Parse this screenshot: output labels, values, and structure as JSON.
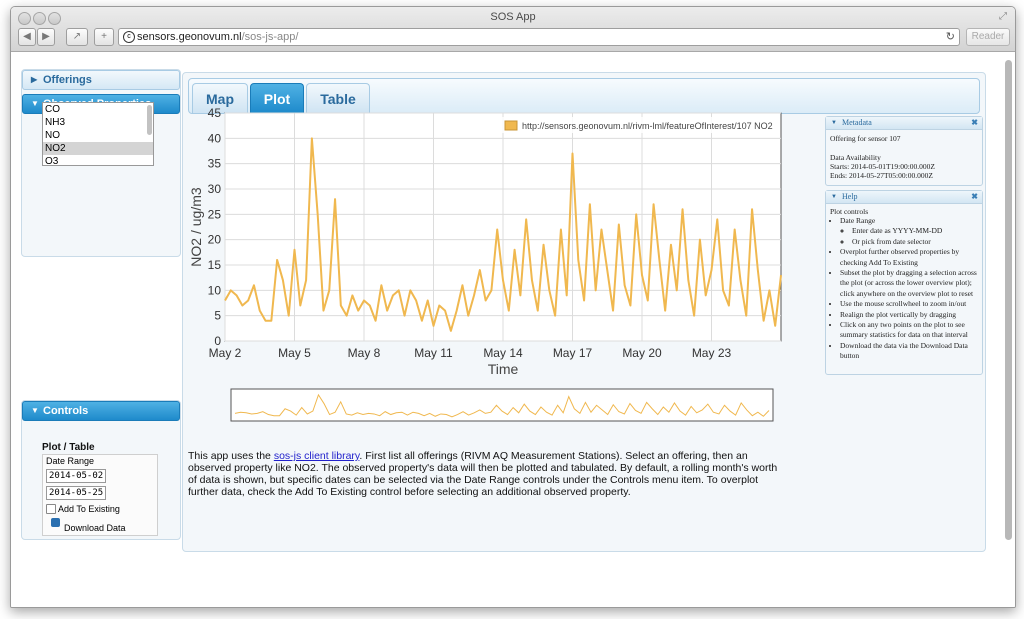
{
  "window": {
    "title": "SOS App",
    "url_host": "sensors.geonovum.nl",
    "url_path": "/sos-js-app/",
    "reader_label": "Reader"
  },
  "sidebar": {
    "offerings_label": "Offerings",
    "observed_properties_label": "Observed Properties",
    "properties": [
      "CO",
      "NH3",
      "NO",
      "NO2",
      "O3"
    ],
    "selected_property": "NO2",
    "controls_label": "Controls",
    "plot_table_label": "Plot / Table",
    "date_range_label": "Date Range",
    "start_date": "2014-05-02",
    "end_date": "2014-05-25",
    "add_to_existing_label": "Add To Existing",
    "download_label": "Download Data"
  },
  "tabs": [
    {
      "label": "Map",
      "active": false
    },
    {
      "label": "Plot",
      "active": true
    },
    {
      "label": "Table",
      "active": false
    }
  ],
  "chart_data": {
    "type": "line",
    "xlabel": "Time",
    "ylabel": "NO2 / ug/m3",
    "ylim": [
      0,
      45
    ],
    "yticks": [
      0,
      5,
      10,
      15,
      20,
      25,
      30,
      35,
      40,
      45
    ],
    "xticks": [
      "May 2",
      "May 5",
      "May 8",
      "May 11",
      "May 14",
      "May 17",
      "May 20",
      "May 23"
    ],
    "grid": true,
    "legend_position": "top-right",
    "series": [
      {
        "name": "http://sensors.geonovum.nl/rivm-lml/featureOfInterest/107 NO2",
        "color": "#f0b84f",
        "x": [
          2.0,
          2.25,
          2.5,
          2.75,
          3.0,
          3.25,
          3.5,
          3.75,
          4.0,
          4.25,
          4.5,
          4.75,
          5.0,
          5.25,
          5.5,
          5.75,
          6.0,
          6.25,
          6.5,
          6.75,
          7.0,
          7.25,
          7.5,
          7.75,
          8.0,
          8.25,
          8.5,
          8.75,
          9.0,
          9.25,
          9.5,
          9.75,
          10.0,
          10.25,
          10.5,
          10.75,
          11.0,
          11.25,
          11.5,
          11.75,
          12.0,
          12.25,
          12.5,
          12.75,
          13.0,
          13.25,
          13.5,
          13.75,
          14.0,
          14.25,
          14.5,
          14.75,
          15.0,
          15.25,
          15.5,
          15.75,
          16.0,
          16.25,
          16.5,
          16.75,
          17.0,
          17.25,
          17.5,
          17.75,
          18.0,
          18.25,
          18.5,
          18.75,
          19.0,
          19.25,
          19.5,
          19.75,
          20.0,
          20.25,
          20.5,
          20.75,
          21.0,
          21.25,
          21.5,
          21.75,
          22.0,
          22.25,
          22.5,
          22.75,
          23.0,
          23.25,
          23.5,
          23.75,
          24.0,
          24.25,
          24.5,
          24.75,
          25.0,
          25.25,
          25.5,
          25.75,
          26.0
        ],
        "values": [
          8,
          10,
          9,
          7,
          8,
          11,
          6,
          4,
          4,
          16,
          12,
          5,
          18,
          7,
          12,
          40,
          25,
          6,
          10,
          28,
          7,
          5,
          9,
          6,
          8,
          7,
          4,
          11,
          6,
          9,
          10,
          5,
          10,
          8,
          4,
          8,
          3,
          7,
          6,
          2,
          6,
          11,
          5,
          9,
          14,
          8,
          10,
          22,
          12,
          6,
          18,
          9,
          24,
          12,
          6,
          19,
          10,
          5,
          22,
          9,
          37,
          16,
          8,
          27,
          10,
          22,
          14,
          6,
          23,
          11,
          7,
          25,
          13,
          8,
          27,
          16,
          6,
          19,
          10,
          26,
          12,
          5,
          20,
          9,
          14,
          24,
          10,
          7,
          22,
          12,
          5,
          26,
          14,
          4,
          10,
          3,
          13
        ]
      }
    ]
  },
  "info_text": {
    "before_link": "This app uses the ",
    "link": "sos-js client library",
    "after_link": ". First list all offerings (RIVM AQ Measurement Stations). Select an offering, then an observed property like NO2. The observed property's data will then be plotted and tabulated. By default, a rolling month's worth of data is shown, but specific dates can be selected via the Date Range controls under the Controls menu item. To overplot further data, check the Add To Existing control before selecting an additional observed property."
  },
  "metadata": {
    "title": "Metadata",
    "offering": "Offering for sensor 107",
    "availability_label": "Data Availability",
    "starts": "Starts: 2014-05-01T19:00:00.000Z",
    "ends": "Ends: 2014-05-27T05:00:00.000Z"
  },
  "help": {
    "title": "Help",
    "heading": "Plot controls",
    "date_range": "Date Range",
    "date_sub1": "Enter date as YYYY-MM-DD",
    "date_sub2": "Or pick from date selector",
    "items": [
      "Overplot further observed properties by checking Add To Existing",
      "Subset the plot by dragging a selection across the plot (or across the lower overview plot); click anywhere on the overview plot to reset",
      "Use the mouse scrollwheel to zoom in/out",
      "Realign the plot vertically by dragging",
      "Click on any two points on the plot to see summary statistics for data on that interval",
      "Download the data via the Download Data button"
    ]
  }
}
